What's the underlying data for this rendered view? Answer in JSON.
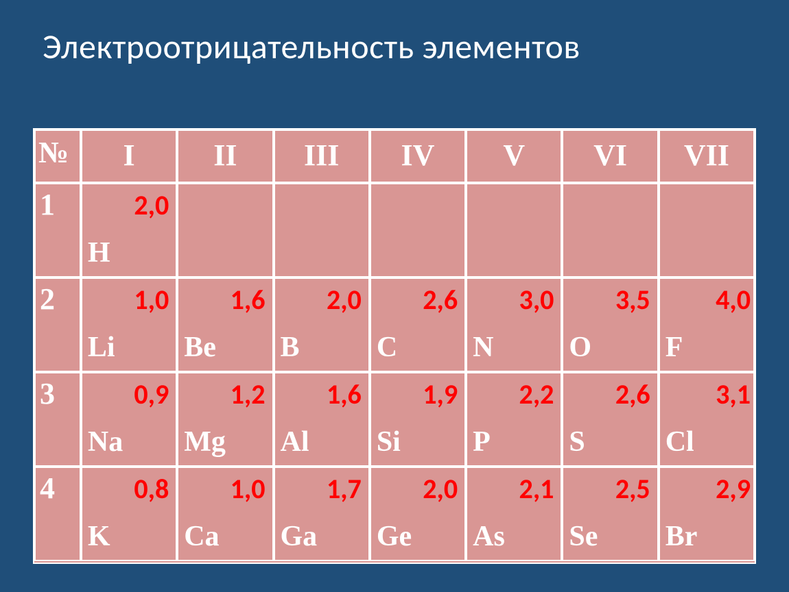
{
  "title": "Электроотрицательность элементов",
  "table": {
    "type": "table",
    "background_color": "#1f4e79",
    "cell_color": "#d99694",
    "border_color": "#ffffff",
    "header_text_color": "#ffffff",
    "symbol_text_color": "#ffffff",
    "value_text_color": "#ff0000",
    "title_fontsize": 50,
    "header_fontsize": 44,
    "symbol_fontsize": 42,
    "value_fontsize": 40,
    "corner_label": "№",
    "columns": [
      "I",
      "II",
      "III",
      "IV",
      "V",
      "VI",
      "VII"
    ],
    "rows": [
      {
        "label": "1",
        "cells": [
          {
            "symbol": "H",
            "value": "2,0"
          },
          null,
          null,
          null,
          null,
          null,
          null
        ]
      },
      {
        "label": "2",
        "cells": [
          {
            "symbol": "Li",
            "value": "1,0"
          },
          {
            "symbol": "Be",
            "value": "1,6"
          },
          {
            "symbol": "B",
            "value": "2,0"
          },
          {
            "symbol": "C",
            "value": "2,6"
          },
          {
            "symbol": "N",
            "value": "3,0"
          },
          {
            "symbol": "O",
            "value": "3,5"
          },
          {
            "symbol": "F",
            "value": "4,0",
            "tight": true
          }
        ]
      },
      {
        "label": "3",
        "cells": [
          {
            "symbol": "Na",
            "value": "0,9"
          },
          {
            "symbol": "Mg",
            "value": "1,2"
          },
          {
            "symbol": "Al",
            "value": "1,6"
          },
          {
            "symbol": "Si",
            "value": "1,9"
          },
          {
            "symbol": "P",
            "value": "2,2"
          },
          {
            "symbol": "S",
            "value": "2,6"
          },
          {
            "symbol": "Cl",
            "value": "3,1",
            "tight": true
          }
        ]
      },
      {
        "label": "4",
        "cells": [
          {
            "symbol": "K",
            "value": "0,8"
          },
          {
            "symbol": "Ca",
            "value": "1,0"
          },
          {
            "symbol": "Ga",
            "value": "1,7"
          },
          {
            "symbol": "Ge",
            "value": "2,0"
          },
          {
            "symbol": "As",
            "value": "2,1"
          },
          {
            "symbol": "Se",
            "value": "2,5"
          },
          {
            "symbol": "Br",
            "value": "2,9",
            "tight": true
          }
        ]
      }
    ]
  }
}
